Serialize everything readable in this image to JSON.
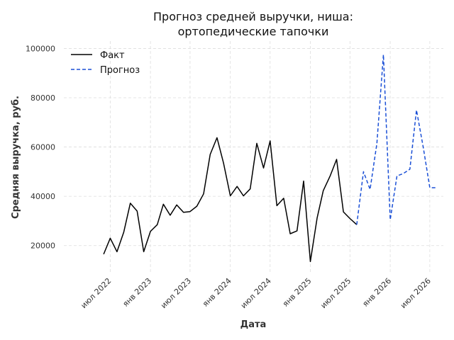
{
  "chart_data": {
    "type": "line",
    "title": "Прогноз средней выручки, ниша:",
    "title_line2": "ортопедические тапочки",
    "xlabel": "Дата",
    "ylabel": "Средняя выручка, руб.",
    "xlim": [
      "2021-12-01",
      "2026-09-01"
    ],
    "ylim": [
      9000,
      103000
    ],
    "y_ticks": [
      20000,
      40000,
      60000,
      80000,
      100000
    ],
    "y_tick_labels": [
      "20000",
      "40000",
      "60000",
      "80000",
      "100000"
    ],
    "x_ticks": [
      "2022-07-01",
      "2023-01-01",
      "2023-07-01",
      "2024-01-01",
      "2024-07-01",
      "2025-01-01",
      "2025-07-01",
      "2026-01-01",
      "2026-07-01"
    ],
    "x_tick_labels": [
      "июл 2022",
      "янв 2023",
      "июл 2023",
      "янв 2024",
      "июл 2024",
      "янв 2025",
      "июл 2025",
      "янв 2026",
      "июл 2026"
    ],
    "grid": true,
    "legend_position": "top-left",
    "series": [
      {
        "name": "Факт",
        "color": "#000000",
        "style": "solid",
        "x": [
          "2022-06-01",
          "2022-07-01",
          "2022-08-01",
          "2022-09-01",
          "2022-10-01",
          "2022-11-01",
          "2022-12-01",
          "2023-01-01",
          "2023-02-01",
          "2023-03-01",
          "2023-04-01",
          "2023-05-01",
          "2023-06-01",
          "2023-07-01",
          "2023-08-01",
          "2023-09-01",
          "2023-10-01",
          "2023-11-01",
          "2023-12-01",
          "2024-01-01",
          "2024-02-01",
          "2024-03-01",
          "2024-04-01",
          "2024-05-01",
          "2024-06-01",
          "2024-07-01",
          "2024-08-01",
          "2024-09-01",
          "2024-10-01",
          "2024-11-01",
          "2024-12-01",
          "2025-01-01",
          "2025-02-01",
          "2025-03-01",
          "2025-04-01",
          "2025-05-01",
          "2025-06-01",
          "2025-07-01",
          "2025-08-01"
        ],
        "values": [
          16500,
          23000,
          17500,
          25500,
          37200,
          34000,
          17500,
          25800,
          28500,
          36800,
          32300,
          36500,
          33500,
          33800,
          36000,
          41000,
          57000,
          63800,
          53500,
          40200,
          44000,
          40200,
          43000,
          61500,
          51500,
          62500,
          36200,
          39200,
          24800,
          26000,
          46200,
          13500,
          31300,
          42300,
          48200,
          55000,
          33700,
          31000,
          28500
        ]
      },
      {
        "name": "Прогноз",
        "color": "#1a4fd6",
        "style": "dashed",
        "x": [
          "2025-08-01",
          "2025-09-01",
          "2025-10-01",
          "2025-11-01",
          "2025-12-01",
          "2026-01-01",
          "2026-02-01",
          "2026-03-01",
          "2026-04-01",
          "2026-05-01",
          "2026-06-01",
          "2026-07-01",
          "2026-08-01"
        ],
        "values": [
          28500,
          50000,
          42800,
          61500,
          97500,
          30500,
          48300,
          49200,
          51000,
          75000,
          60000,
          43500,
          43500
        ]
      }
    ]
  }
}
